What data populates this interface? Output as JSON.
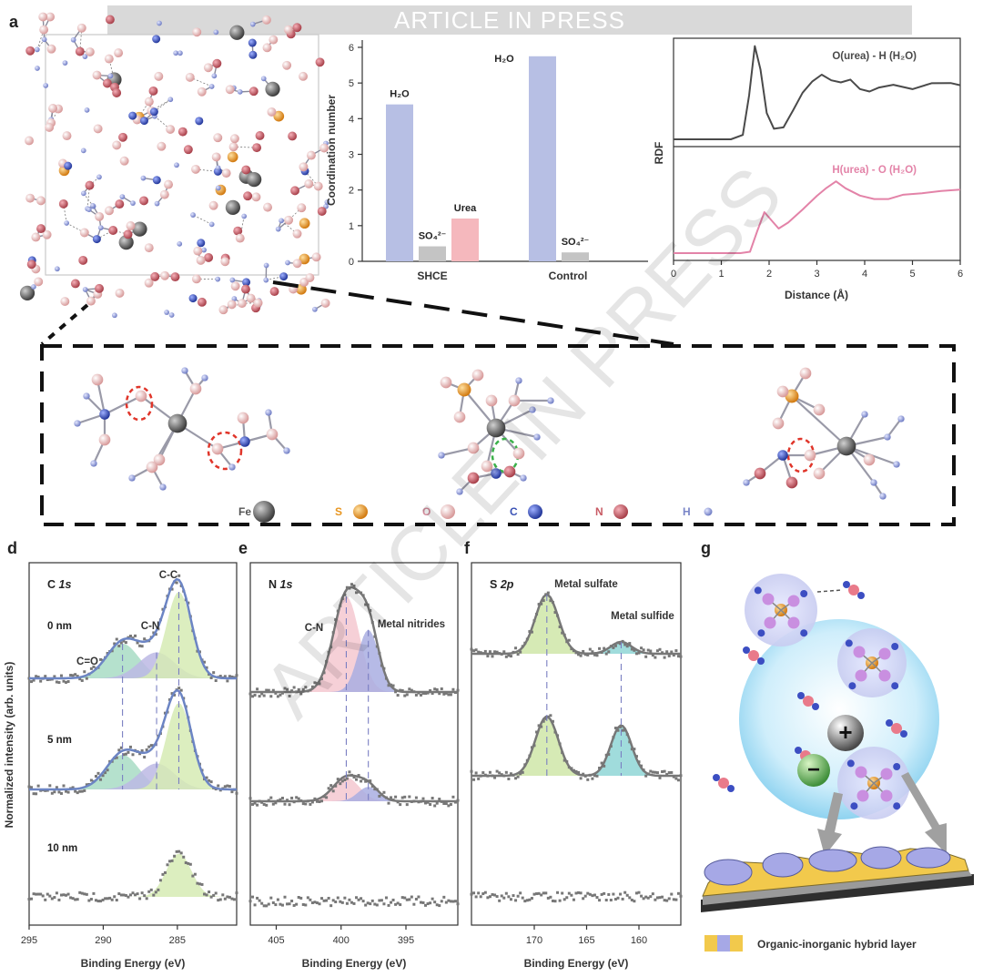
{
  "banner": "ARTICLE IN PRESS",
  "watermark": "ARTICLE IN PRESS",
  "panel_letters": [
    "a",
    "d",
    "e",
    "f",
    "g"
  ],
  "legend_atoms": [
    {
      "symbol": "Fe",
      "color": "#555555"
    },
    {
      "symbol": "S",
      "color": "#e8951f"
    },
    {
      "symbol": "O",
      "color": "#f2b6b6"
    },
    {
      "symbol": "C",
      "color": "#3a52b5"
    },
    {
      "symbol": "N",
      "color": "#c85b64"
    },
    {
      "symbol": "H",
      "color": "#8f9bd8"
    }
  ],
  "hybrid_layer_label": "Organic-inorganic hybrid layer",
  "chart_data": [
    {
      "id": "coordination",
      "type": "bar",
      "ylabel": "Coordination number",
      "ylim": [
        0,
        6
      ],
      "yticks": [
        0,
        1,
        2,
        3,
        4,
        5,
        6
      ],
      "groups": [
        "SHCE",
        "Control"
      ],
      "series": [
        {
          "name": "H₂O",
          "values": [
            4.4,
            5.75
          ],
          "color": "#b7bfe4"
        },
        {
          "name": "SO₄²⁻",
          "values": [
            0.42,
            0.25
          ],
          "color": "#c4c4c4"
        },
        {
          "name": "Urea",
          "values": [
            1.2,
            null
          ],
          "color": "#f5b8bd"
        }
      ]
    },
    {
      "id": "rdf",
      "type": "line",
      "ylabel": "RDF",
      "xlabel": "Distance (Å)",
      "xlim": [
        0,
        6
      ],
      "xticks": [
        0,
        1,
        2,
        3,
        4,
        5,
        6
      ],
      "series": [
        {
          "name": "O(urea) - H (H₂O)",
          "color": "#4a4a4a",
          "x": [
            0,
            1.2,
            1.45,
            1.58,
            1.7,
            1.82,
            1.95,
            2.1,
            2.3,
            2.5,
            2.7,
            2.9,
            3.1,
            3.3,
            3.5,
            3.7,
            3.9,
            4.1,
            4.3,
            4.6,
            5.0,
            5.4,
            5.8,
            6.0
          ],
          "y": [
            0.0,
            0.0,
            0.15,
            1.5,
            3.2,
            2.4,
            0.9,
            0.35,
            0.4,
            1.0,
            1.6,
            2.0,
            2.2,
            2.05,
            1.95,
            2.05,
            1.75,
            1.65,
            1.8,
            1.85,
            1.75,
            1.9,
            1.95,
            1.85
          ]
        },
        {
          "name": "H(urea) - O (H₂O)",
          "color": "#e383a8",
          "x": [
            0,
            1.4,
            1.6,
            1.75,
            1.9,
            2.05,
            2.2,
            2.4,
            2.7,
            3.0,
            3.2,
            3.4,
            3.6,
            3.9,
            4.2,
            4.5,
            4.8,
            5.2,
            5.6,
            6.0
          ],
          "y": [
            0.0,
            0.0,
            0.05,
            0.8,
            1.5,
            1.2,
            0.9,
            1.1,
            1.6,
            2.1,
            2.4,
            2.6,
            2.4,
            2.1,
            2.0,
            2.0,
            2.15,
            2.2,
            2.3,
            2.3
          ]
        }
      ]
    },
    {
      "id": "xps_c1s",
      "type": "line",
      "title": "C 1s",
      "ylabel": "Normalized intensity (arb. units)",
      "xlabel": "Binding Energy (eV)",
      "xlim": [
        295,
        281
      ],
      "xticks": [
        295,
        290,
        285
      ],
      "rows": [
        "0 nm",
        "5 nm",
        "10 nm"
      ],
      "peaks": [
        {
          "label": "C=O",
          "center": 288.7,
          "color": "#a8dcc4"
        },
        {
          "label": "C-N",
          "center": 286.4,
          "color": "#bcb8e4"
        },
        {
          "label": "C-C",
          "center": 284.9,
          "color": "#d6ebb4"
        }
      ],
      "heights": {
        "0 nm": [
          0.4,
          0.3,
          1.0
        ],
        "5 nm": [
          0.4,
          0.3,
          1.0
        ],
        "10 nm": [
          0,
          0,
          0.5
        ]
      }
    },
    {
      "id": "xps_n1s",
      "type": "line",
      "title": "N 1s",
      "xlabel": "Binding Energy (eV)",
      "xlim": [
        407,
        391
      ],
      "xticks": [
        405,
        400,
        395
      ],
      "peaks": [
        {
          "label": "C-N",
          "center": 399.6,
          "color": "#f4c8d0"
        },
        {
          "label": "Metal nitrides",
          "center": 397.9,
          "color": "#a9aee2"
        }
      ],
      "heights": {
        "0 nm": [
          1.0,
          0.65
        ],
        "5 nm": [
          0.25,
          0.15
        ],
        "10 nm": [
          0,
          0
        ]
      }
    },
    {
      "id": "xps_s2p",
      "type": "line",
      "title": "S 2p",
      "xlabel": "Binding Energy (eV)",
      "xlim": [
        176,
        156
      ],
      "xticks": [
        170,
        165,
        160
      ],
      "peaks": [
        {
          "label": "Metal sulfate",
          "center": 168.8,
          "color": "#cfe6a8"
        },
        {
          "label": "Metal sulfide",
          "center": 161.7,
          "color": "#8fd6d6"
        }
      ],
      "heights": {
        "0 nm": [
          1.0,
          0.2
        ],
        "5 nm": [
          1.0,
          0.85
        ],
        "10 nm": [
          0,
          0
        ]
      }
    }
  ]
}
